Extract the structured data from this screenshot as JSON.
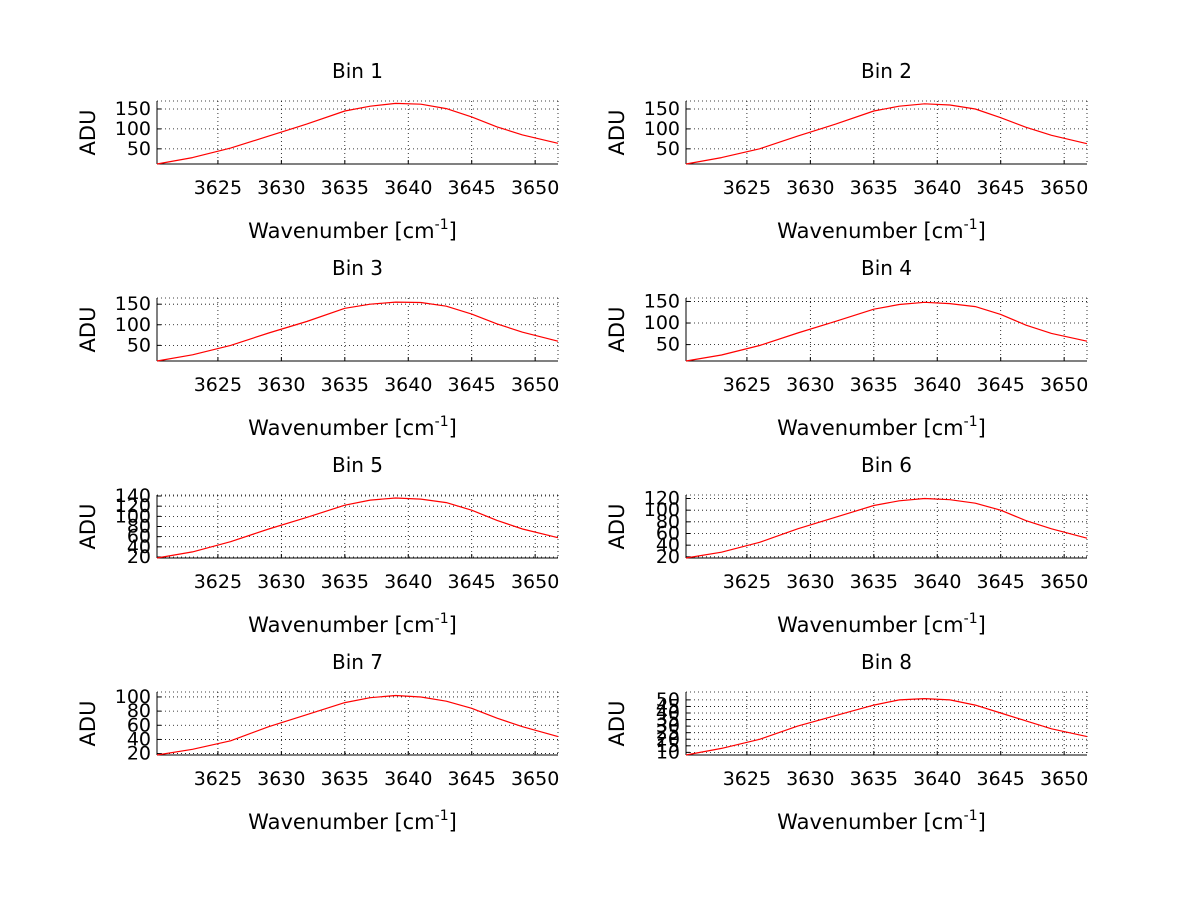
{
  "chart_data": [
    {
      "type": "line",
      "title": "Bin 1",
      "xlabel": "Wavenumber [cm",
      "xlabel_sup": "-1",
      "xlabel_end": "]",
      "ylabel": "ADU",
      "xlim": [
        3620.2,
        3651.8
      ],
      "ylim": [
        12,
        170
      ],
      "grid": true,
      "xticks": [
        3625,
        3630,
        3635,
        3640,
        3645,
        3650
      ],
      "yticks": [
        50,
        100,
        150
      ],
      "series": [
        {
          "color": "#ff0000",
          "x": [
            3620.2,
            3623,
            3626,
            3629,
            3632,
            3635,
            3637,
            3639,
            3641,
            3643,
            3645,
            3647,
            3649,
            3651.8
          ],
          "y": [
            12,
            28,
            52,
            82,
            112,
            145,
            157,
            164,
            162,
            151,
            130,
            105,
            85,
            64
          ]
        }
      ]
    },
    {
      "type": "line",
      "title": "Bin 2",
      "xlabel": "Wavenumber [cm",
      "xlabel_sup": "-1",
      "xlabel_end": "]",
      "ylabel": "ADU",
      "xlim": [
        3620.2,
        3651.8
      ],
      "ylim": [
        12,
        170
      ],
      "grid": true,
      "xticks": [
        3625,
        3630,
        3635,
        3640,
        3645,
        3650
      ],
      "yticks": [
        50,
        100,
        150
      ],
      "series": [
        {
          "color": "#ff0000",
          "x": [
            3620.2,
            3623,
            3626,
            3629,
            3632,
            3635,
            3637,
            3639,
            3641,
            3643,
            3645,
            3647,
            3649,
            3651.8
          ],
          "y": [
            12,
            28,
            50,
            82,
            112,
            145,
            157,
            163,
            160,
            150,
            128,
            104,
            84,
            63
          ]
        }
      ]
    },
    {
      "type": "line",
      "title": "Bin 3",
      "xlabel": "Wavenumber [cm",
      "xlabel_sup": "-1",
      "xlabel_end": "]",
      "ylabel": "ADU",
      "xlim": [
        3620.2,
        3651.8
      ],
      "ylim": [
        12,
        165
      ],
      "grid": true,
      "xticks": [
        3625,
        3630,
        3635,
        3640,
        3645,
        3650
      ],
      "yticks": [
        50,
        100,
        150
      ],
      "series": [
        {
          "color": "#ff0000",
          "x": [
            3620.2,
            3623,
            3626,
            3629,
            3632,
            3635,
            3637,
            3639,
            3641,
            3643,
            3645,
            3647,
            3649,
            3651.8
          ],
          "y": [
            12,
            27,
            50,
            80,
            108,
            140,
            150,
            155,
            154,
            145,
            126,
            102,
            82,
            60
          ]
        }
      ]
    },
    {
      "type": "line",
      "title": "Bin 4",
      "xlabel": "Wavenumber [cm",
      "xlabel_sup": "-1",
      "xlabel_end": "]",
      "ylabel": "ADU",
      "xlim": [
        3620.2,
        3651.8
      ],
      "ylim": [
        12,
        158
      ],
      "grid": true,
      "xticks": [
        3625,
        3630,
        3635,
        3640,
        3645,
        3650
      ],
      "yticks": [
        50,
        100,
        150
      ],
      "series": [
        {
          "color": "#ff0000",
          "x": [
            3620.2,
            3623,
            3626,
            3629,
            3632,
            3635,
            3637,
            3639,
            3641,
            3643,
            3645,
            3647,
            3649,
            3651.8
          ],
          "y": [
            12,
            26,
            48,
            77,
            104,
            132,
            143,
            148,
            145,
            138,
            120,
            95,
            76,
            58
          ]
        }
      ]
    },
    {
      "type": "line",
      "title": "Bin 5",
      "xlabel": "Wavenumber [cm",
      "xlabel_sup": "-1",
      "xlabel_end": "]",
      "ylabel": "ADU",
      "xlim": [
        3620.2,
        3651.8
      ],
      "ylim": [
        18,
        142
      ],
      "grid": true,
      "xticks": [
        3625,
        3630,
        3635,
        3640,
        3645,
        3650
      ],
      "yticks": [
        20,
        40,
        60,
        80,
        100,
        120,
        140
      ],
      "series": [
        {
          "color": "#ff0000",
          "x": [
            3620.2,
            3623,
            3626,
            3629,
            3632,
            3635,
            3637,
            3639,
            3641,
            3643,
            3645,
            3647,
            3649,
            3651.8
          ],
          "y": [
            18,
            30,
            50,
            75,
            98,
            122,
            132,
            136,
            134,
            127,
            112,
            92,
            75,
            58
          ]
        }
      ]
    },
    {
      "type": "line",
      "title": "Bin 6",
      "xlabel": "Wavenumber [cm",
      "xlabel_sup": "-1",
      "xlabel_end": "]",
      "ylabel": "ADU",
      "xlim": [
        3620.2,
        3651.8
      ],
      "ylim": [
        18,
        126
      ],
      "grid": true,
      "xticks": [
        3625,
        3630,
        3635,
        3640,
        3645,
        3650
      ],
      "yticks": [
        20,
        40,
        60,
        80,
        100,
        120
      ],
      "series": [
        {
          "color": "#ff0000",
          "x": [
            3620.2,
            3623,
            3626,
            3629,
            3632,
            3635,
            3637,
            3639,
            3641,
            3643,
            3645,
            3647,
            3649,
            3651.8
          ],
          "y": [
            18,
            28,
            45,
            68,
            88,
            108,
            116,
            120,
            118,
            112,
            100,
            82,
            68,
            52
          ]
        }
      ]
    },
    {
      "type": "line",
      "title": "Bin 7",
      "xlabel": "Wavenumber [cm",
      "xlabel_sup": "-1",
      "xlabel_end": "]",
      "ylabel": "ADU",
      "xlim": [
        3620.2,
        3651.8
      ],
      "ylim": [
        18,
        107
      ],
      "grid": true,
      "xticks": [
        3625,
        3630,
        3635,
        3640,
        3645,
        3650
      ],
      "yticks": [
        20,
        40,
        60,
        80,
        100
      ],
      "series": [
        {
          "color": "#ff0000",
          "x": [
            3620.2,
            3623,
            3626,
            3629,
            3632,
            3635,
            3637,
            3639,
            3641,
            3643,
            3645,
            3647,
            3649,
            3651.8
          ],
          "y": [
            18,
            26,
            38,
            58,
            75,
            92,
            99,
            102,
            100,
            94,
            84,
            70,
            58,
            44
          ]
        }
      ]
    },
    {
      "type": "line",
      "title": "Bin 8",
      "xlabel": "Wavenumber [cm",
      "xlabel_sup": "-1",
      "xlabel_end": "]",
      "ylabel": "ADU",
      "xlim": [
        3620.2,
        3651.8
      ],
      "ylim": [
        8,
        56
      ],
      "grid": true,
      "xticks": [
        3625,
        3630,
        3635,
        3640,
        3645,
        3650
      ],
      "yticks": [
        10,
        15,
        20,
        25,
        30,
        35,
        40,
        45,
        50
      ],
      "series": [
        {
          "color": "#ff0000",
          "x": [
            3620.2,
            3623,
            3626,
            3629,
            3632,
            3635,
            3637,
            3639,
            3641,
            3643,
            3645,
            3647,
            3649,
            3651.8
          ],
          "y": [
            8,
            13,
            20,
            30,
            38,
            46,
            50,
            51,
            50,
            46,
            40,
            34,
            28,
            22
          ]
        }
      ]
    }
  ]
}
